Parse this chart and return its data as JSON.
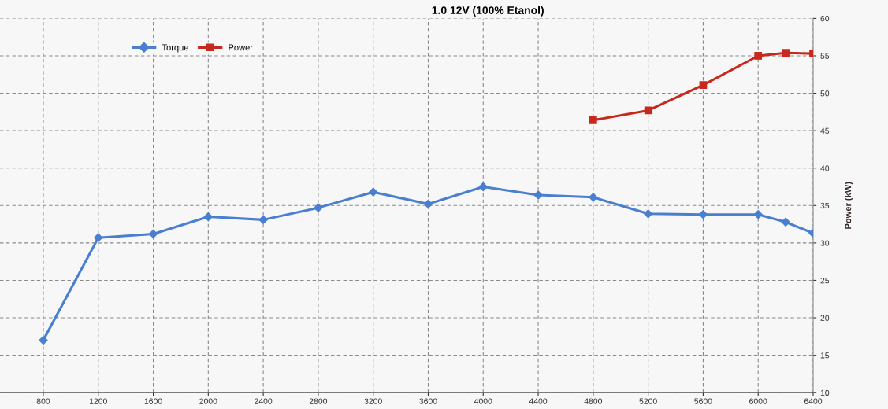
{
  "chart_data": {
    "type": "line",
    "title": "1.0 12V (100% Etanol)",
    "ylabel": "Power (kW)",
    "series": [
      {
        "name": "Torque",
        "color": "#4a7fd0",
        "marker": "diamond",
        "x": [
          800,
          1200,
          1600,
          2000,
          2400,
          2800,
          3200,
          3600,
          4000,
          4400,
          4800,
          5200,
          5600,
          6000,
          6200,
          6400
        ],
        "values": [
          17.0,
          30.7,
          31.2,
          33.5,
          33.1,
          34.7,
          36.8,
          35.2,
          37.5,
          36.4,
          36.1,
          33.9,
          33.8,
          33.8,
          32.8,
          31.3
        ]
      },
      {
        "name": "Power",
        "color": "#c8281e",
        "marker": "square",
        "x": [
          4800,
          5200,
          5600,
          6000,
          6200,
          6400
        ],
        "values": [
          46.4,
          47.7,
          51.1,
          55.0,
          55.4,
          55.3
        ]
      }
    ],
    "xlim": [
      485,
      6400
    ],
    "ylim": [
      10,
      60
    ],
    "xticks": [
      800,
      1200,
      1600,
      2000,
      2400,
      2800,
      3200,
      3600,
      4000,
      4400,
      4800,
      5200,
      5600,
      6000,
      6400
    ],
    "yticks": [
      10,
      15,
      20,
      25,
      30,
      35,
      40,
      45,
      50,
      55,
      60
    ],
    "grid": true,
    "legend": "top left",
    "line_style": "solid"
  }
}
